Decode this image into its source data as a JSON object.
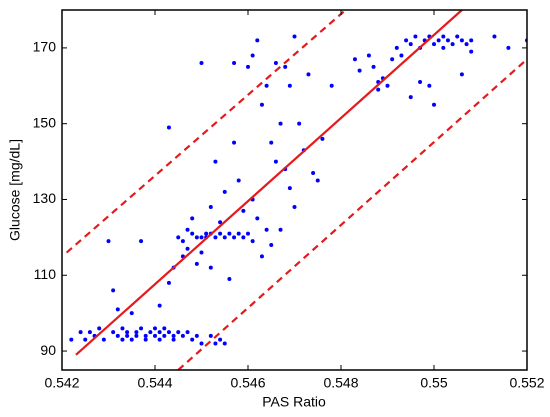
{
  "chart_data": {
    "type": "scatter",
    "xlabel": "PAS Ratio",
    "ylabel": "Glucose [mg/dL]",
    "xlim": [
      0.542,
      0.552
    ],
    "ylim": [
      85,
      180
    ],
    "xticks": [
      0.542,
      0.544,
      0.546,
      0.548,
      0.55,
      0.552
    ],
    "yticks": [
      90,
      110,
      130,
      150,
      170
    ],
    "series": [
      {
        "color": "#0000ff",
        "marker": "dot",
        "x": [
          0.5422,
          0.5424,
          0.5425,
          0.5426,
          0.5427,
          0.5428,
          0.5429,
          0.543,
          0.5431,
          0.5431,
          0.5432,
          0.5432,
          0.5433,
          0.5433,
          0.5434,
          0.5434,
          0.5435,
          0.5435,
          0.5436,
          0.5436,
          0.5437,
          0.5437,
          0.5438,
          0.5438,
          0.5439,
          0.544,
          0.544,
          0.5441,
          0.5441,
          0.5442,
          0.5442,
          0.5443,
          0.5444,
          0.5444,
          0.5445,
          0.5446,
          0.5447,
          0.5448,
          0.5449,
          0.545,
          0.5452,
          0.5453,
          0.5454,
          0.5455,
          0.5441,
          0.5443,
          0.5443,
          0.5444,
          0.5445,
          0.5446,
          0.5446,
          0.5447,
          0.5447,
          0.5448,
          0.5448,
          0.5449,
          0.5449,
          0.545,
          0.545,
          0.545,
          0.5451,
          0.5451,
          0.5452,
          0.5452,
          0.5452,
          0.5453,
          0.5453,
          0.5454,
          0.5454,
          0.5455,
          0.5455,
          0.5456,
          0.5456,
          0.5457,
          0.5457,
          0.5457,
          0.5458,
          0.5458,
          0.5459,
          0.5459,
          0.546,
          0.546,
          0.5461,
          0.5461,
          0.5461,
          0.5462,
          0.5462,
          0.5463,
          0.5463,
          0.5464,
          0.5464,
          0.5465,
          0.5465,
          0.5466,
          0.5466,
          0.5467,
          0.5467,
          0.5468,
          0.5468,
          0.5469,
          0.5469,
          0.547,
          0.547,
          0.5471,
          0.5472,
          0.5473,
          0.5474,
          0.5475,
          0.5476,
          0.5478,
          0.5483,
          0.5484,
          0.5486,
          0.5487,
          0.5488,
          0.5488,
          0.5489,
          0.549,
          0.5491,
          0.5492,
          0.5493,
          0.5494,
          0.5495,
          0.5495,
          0.5496,
          0.5497,
          0.5497,
          0.5498,
          0.5499,
          0.5499,
          0.55,
          0.55,
          0.5501,
          0.5502,
          0.5502,
          0.5503,
          0.5504,
          0.5505,
          0.5506,
          0.5506,
          0.5507,
          0.5508,
          0.5508,
          0.5513,
          0.5516,
          0.552
        ],
        "values": [
          93,
          95,
          93,
          95,
          94,
          96,
          93,
          119,
          106,
          95,
          94,
          101,
          96,
          93,
          95,
          94,
          100,
          93,
          95,
          94,
          119,
          96,
          94,
          93,
          95,
          94,
          96,
          93,
          95,
          94,
          96,
          95,
          93,
          94,
          95,
          94,
          95,
          93,
          94,
          92,
          94,
          92,
          93,
          92,
          102,
          108,
          149,
          112,
          120,
          119,
          115,
          122,
          117,
          125,
          121,
          113,
          120,
          120,
          166,
          116,
          121,
          120,
          121,
          128,
          112,
          120,
          140,
          121,
          124,
          120,
          132,
          121,
          109,
          120,
          166,
          145,
          121,
          135,
          120,
          127,
          121,
          165,
          119,
          168,
          130,
          125,
          172,
          115,
          155,
          122,
          160,
          118,
          145,
          140,
          166,
          122,
          150,
          165,
          138,
          133,
          160,
          173,
          128,
          150,
          143,
          163,
          137,
          135,
          146,
          160,
          167,
          164,
          168,
          165,
          159,
          161,
          162,
          160,
          167,
          170,
          168,
          172,
          171,
          157,
          173,
          170,
          161,
          172,
          173,
          160,
          171,
          155,
          172,
          173,
          170,
          172,
          171,
          173,
          172,
          163,
          171,
          172,
          169,
          173,
          170,
          172
        ]
      },
      {
        "color": "#e41a1c",
        "line": "solid",
        "x": [
          0.5423,
          0.5506
        ],
        "values": [
          89,
          180
        ]
      },
      {
        "color": "#e41a1c",
        "line": "dashed",
        "x": [
          0.5421,
          0.5481
        ],
        "values": [
          116,
          180
        ]
      },
      {
        "color": "#e41a1c",
        "line": "dashed",
        "x": [
          0.5445,
          0.552
        ],
        "values": [
          85,
          167
        ]
      }
    ]
  }
}
